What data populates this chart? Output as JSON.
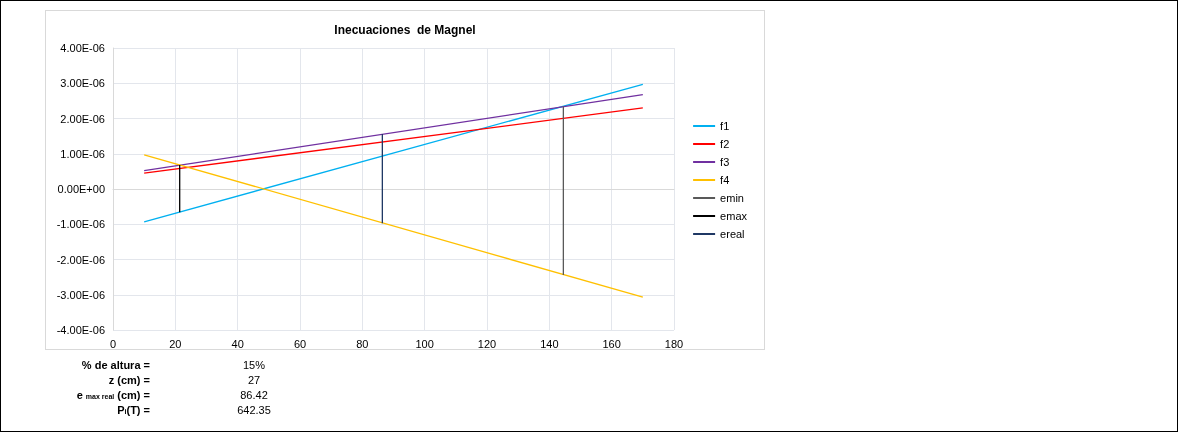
{
  "chart_data": {
    "type": "line",
    "title": "Inecuaciones  de Magnel",
    "xlim": [
      0,
      180
    ],
    "xticks": [
      0,
      20,
      40,
      60,
      80,
      100,
      120,
      140,
      160,
      180
    ],
    "ylim": [
      -4e-06,
      4e-06
    ],
    "yticks": [
      {
        "value": -4e-06,
        "label": "-4.00E-06"
      },
      {
        "value": -3e-06,
        "label": "-3.00E-06"
      },
      {
        "value": -2e-06,
        "label": "-2.00E-06"
      },
      {
        "value": -1e-06,
        "label": "-1.00E-06"
      },
      {
        "value": 0,
        "label": "0.00E+00"
      },
      {
        "value": 1e-06,
        "label": "1.00E-06"
      },
      {
        "value": 2e-06,
        "label": "2.00E-06"
      },
      {
        "value": 3e-06,
        "label": "3.00E-06"
      },
      {
        "value": 4e-06,
        "label": "4.00E-06"
      }
    ],
    "grid": true,
    "legend": "right",
    "series": [
      {
        "name": "f1",
        "color": "#00b0f0",
        "x": [
          10,
          170
        ],
        "values": [
          -9.3e-07,
          2.97e-06
        ]
      },
      {
        "name": "f2",
        "color": "#ff0000",
        "x": [
          10,
          170
        ],
        "values": [
          4.5e-07,
          2.3e-06
        ]
      },
      {
        "name": "f3",
        "color": "#7030a0",
        "x": [
          10,
          170
        ],
        "values": [
          5.2e-07,
          2.68e-06
        ]
      },
      {
        "name": "f4",
        "color": "#ffc000",
        "x": [
          10,
          170
        ],
        "values": [
          9.7e-07,
          -3.07e-06
        ]
      },
      {
        "name": "emin",
        "color": "#595959",
        "x": [
          144.5,
          144.5
        ],
        "values": [
          -2.44e-06,
          2.34e-06
        ]
      },
      {
        "name": "emax",
        "color": "#000000",
        "x": [
          21.4,
          21.4
        ],
        "values": [
          -6.6e-07,
          6.8e-07
        ]
      },
      {
        "name": "ereal",
        "color": "#1f3864",
        "x": [
          86.42,
          86.42
        ],
        "values": [
          -9.7e-07,
          1.56e-06
        ]
      }
    ],
    "annotations": [
      "% de altura = 15%",
      "z (cm) = 27",
      "e $_{max real}$ (cm) = 86.42",
      "P$_{i}$(T) = 642.35"
    ]
  }
}
